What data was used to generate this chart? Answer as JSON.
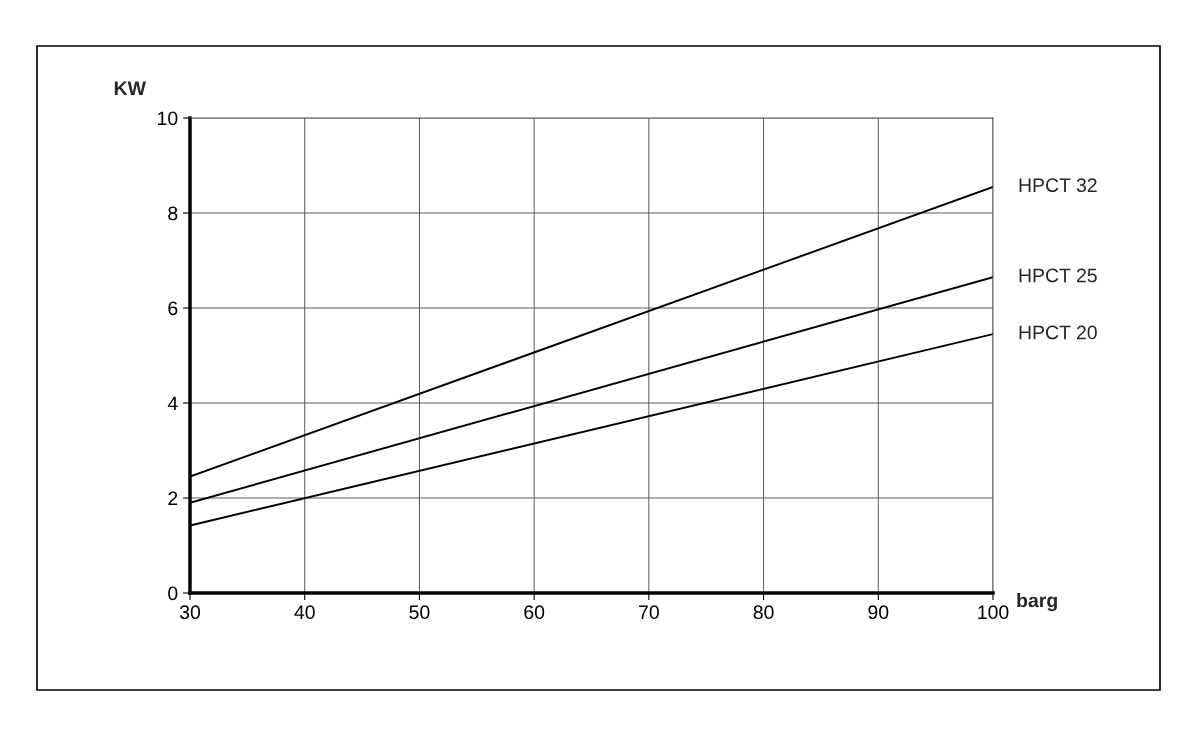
{
  "chart_data": {
    "type": "line",
    "xlabel": "barg",
    "ylabel": "KW",
    "xlim": [
      30,
      100
    ],
    "xticks": [
      30,
      40,
      50,
      60,
      70,
      80,
      90,
      100
    ],
    "ylim": [
      0,
      10
    ],
    "yticks": [
      0,
      2,
      4,
      6,
      8,
      10
    ],
    "grid": true,
    "marker": "none",
    "line_style": "solid",
    "x": [
      30,
      100
    ],
    "series": [
      {
        "name": "HPCT 32",
        "color": "#000000",
        "values": [
          2.45,
          8.55
        ]
      },
      {
        "name": "HPCT 25",
        "color": "#000000",
        "values": [
          1.9,
          6.65
        ]
      },
      {
        "name": "HPCT 20",
        "color": "#000000",
        "values": [
          1.42,
          5.45
        ]
      }
    ]
  }
}
